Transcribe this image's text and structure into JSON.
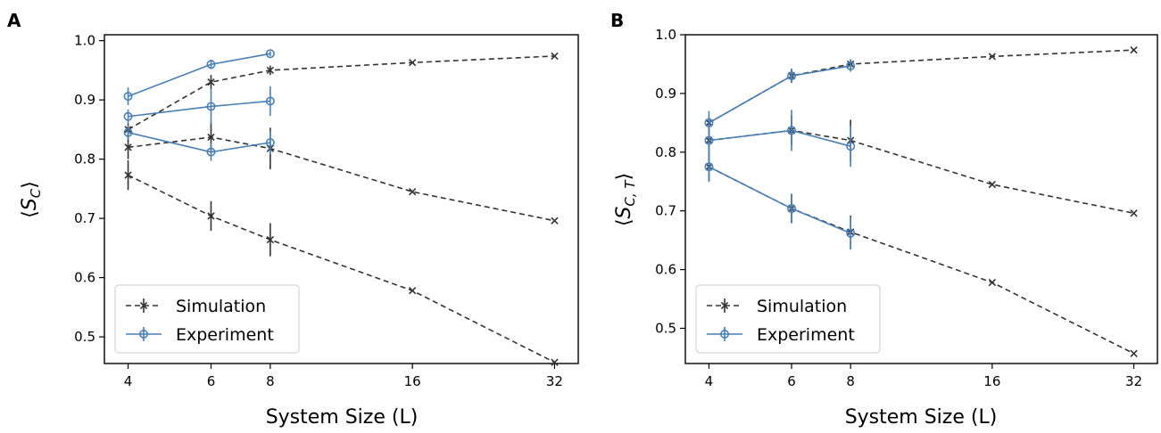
{
  "colors": {
    "simulation": "#333333",
    "experiment": "#4a7fb5"
  },
  "chart_data": [
    {
      "type": "line",
      "panel_label": "A",
      "xlabel": "System Size (L)",
      "ylabel": "⟨S_C⟩",
      "ylabel_main": "S",
      "ylabel_sub": "C",
      "x_ticks": [
        4,
        6,
        8,
        16,
        32
      ],
      "y_ticks": [
        "0.5",
        "0.6",
        "0.7",
        "0.8",
        "0.9",
        "1.0"
      ],
      "ylim": [
        0.455,
        1.01
      ],
      "legend": [
        "Simulation",
        "Experiment"
      ],
      "legend_position": "lower-left",
      "series": [
        {
          "group": "Simulation",
          "style": "dashed",
          "marker": "x",
          "x": [
            4,
            6,
            8,
            16,
            32
          ],
          "y": [
            0.85,
            0.93,
            0.95,
            0.963,
            0.974
          ],
          "err": [
            0.01,
            0.012,
            0.008,
            0,
            0
          ]
        },
        {
          "group": "Simulation",
          "style": "dashed",
          "marker": "x",
          "x": [
            4,
            6,
            8,
            16,
            32
          ],
          "y": [
            0.82,
            0.837,
            0.818,
            0.745,
            0.696
          ],
          "err": [
            0.02,
            0.025,
            0.035,
            0,
            0
          ]
        },
        {
          "group": "Simulation",
          "style": "dashed",
          "marker": "x",
          "x": [
            4,
            6,
            8,
            16,
            32
          ],
          "y": [
            0.773,
            0.704,
            0.664,
            0.578,
            0.457
          ],
          "err": [
            0.025,
            0.025,
            0.028,
            0,
            0
          ]
        },
        {
          "group": "Experiment",
          "style": "solid",
          "marker": "o",
          "x": [
            4,
            6,
            8
          ],
          "y": [
            0.906,
            0.96,
            0.978
          ],
          "err": [
            0.015,
            0.008,
            0.004
          ]
        },
        {
          "group": "Experiment",
          "style": "solid",
          "marker": "o",
          "x": [
            4,
            6,
            8
          ],
          "y": [
            0.872,
            0.889,
            0.898
          ],
          "err": [
            0.012,
            0.03,
            0.025
          ]
        },
        {
          "group": "Experiment",
          "style": "solid",
          "marker": "o",
          "x": [
            4,
            6,
            8
          ],
          "y": [
            0.845,
            0.812,
            0.828
          ],
          "err": [
            0.012,
            0.015,
            0.02
          ]
        }
      ]
    },
    {
      "type": "line",
      "panel_label": "B",
      "xlabel": "System Size (L)",
      "ylabel": "⟨S_C,T⟩",
      "ylabel_main": "S",
      "ylabel_sub": "C, T",
      "x_ticks": [
        4,
        6,
        8,
        16,
        32
      ],
      "y_ticks": [
        "0.5",
        "0.6",
        "0.7",
        "0.8",
        "0.9",
        "1.0"
      ],
      "ylim": [
        0.44,
        1.0
      ],
      "legend": [
        "Simulation",
        "Experiment"
      ],
      "legend_position": "lower-left",
      "series": [
        {
          "group": "Simulation",
          "style": "dashed",
          "marker": "x",
          "x": [
            4,
            6,
            8,
            16,
            32
          ],
          "y": [
            0.85,
            0.93,
            0.95,
            0.963,
            0.974
          ],
          "err": [
            0.01,
            0.012,
            0.008,
            0,
            0
          ]
        },
        {
          "group": "Simulation",
          "style": "dashed",
          "marker": "x",
          "x": [
            4,
            6,
            8,
            16,
            32
          ],
          "y": [
            0.82,
            0.837,
            0.82,
            0.745,
            0.696
          ],
          "err": [
            0.02,
            0.025,
            0.035,
            0,
            0
          ]
        },
        {
          "group": "Simulation",
          "style": "dashed",
          "marker": "x",
          "x": [
            4,
            6,
            8,
            16,
            32
          ],
          "y": [
            0.775,
            0.704,
            0.664,
            0.578,
            0.457
          ],
          "err": [
            0.025,
            0.025,
            0.028,
            0,
            0
          ]
        },
        {
          "group": "Experiment",
          "style": "solid",
          "marker": "o",
          "x": [
            4,
            6,
            8
          ],
          "y": [
            0.85,
            0.93,
            0.947
          ],
          "err": [
            0.02,
            0.012,
            0.01
          ]
        },
        {
          "group": "Experiment",
          "style": "solid",
          "marker": "o",
          "x": [
            4,
            6,
            8
          ],
          "y": [
            0.82,
            0.837,
            0.81
          ],
          "err": [
            0.02,
            0.035,
            0.035
          ]
        },
        {
          "group": "Experiment",
          "style": "solid",
          "marker": "o",
          "x": [
            4,
            6,
            8
          ],
          "y": [
            0.775,
            0.704,
            0.662
          ],
          "err": [
            0.025,
            0.025,
            0.028
          ]
        }
      ]
    }
  ]
}
